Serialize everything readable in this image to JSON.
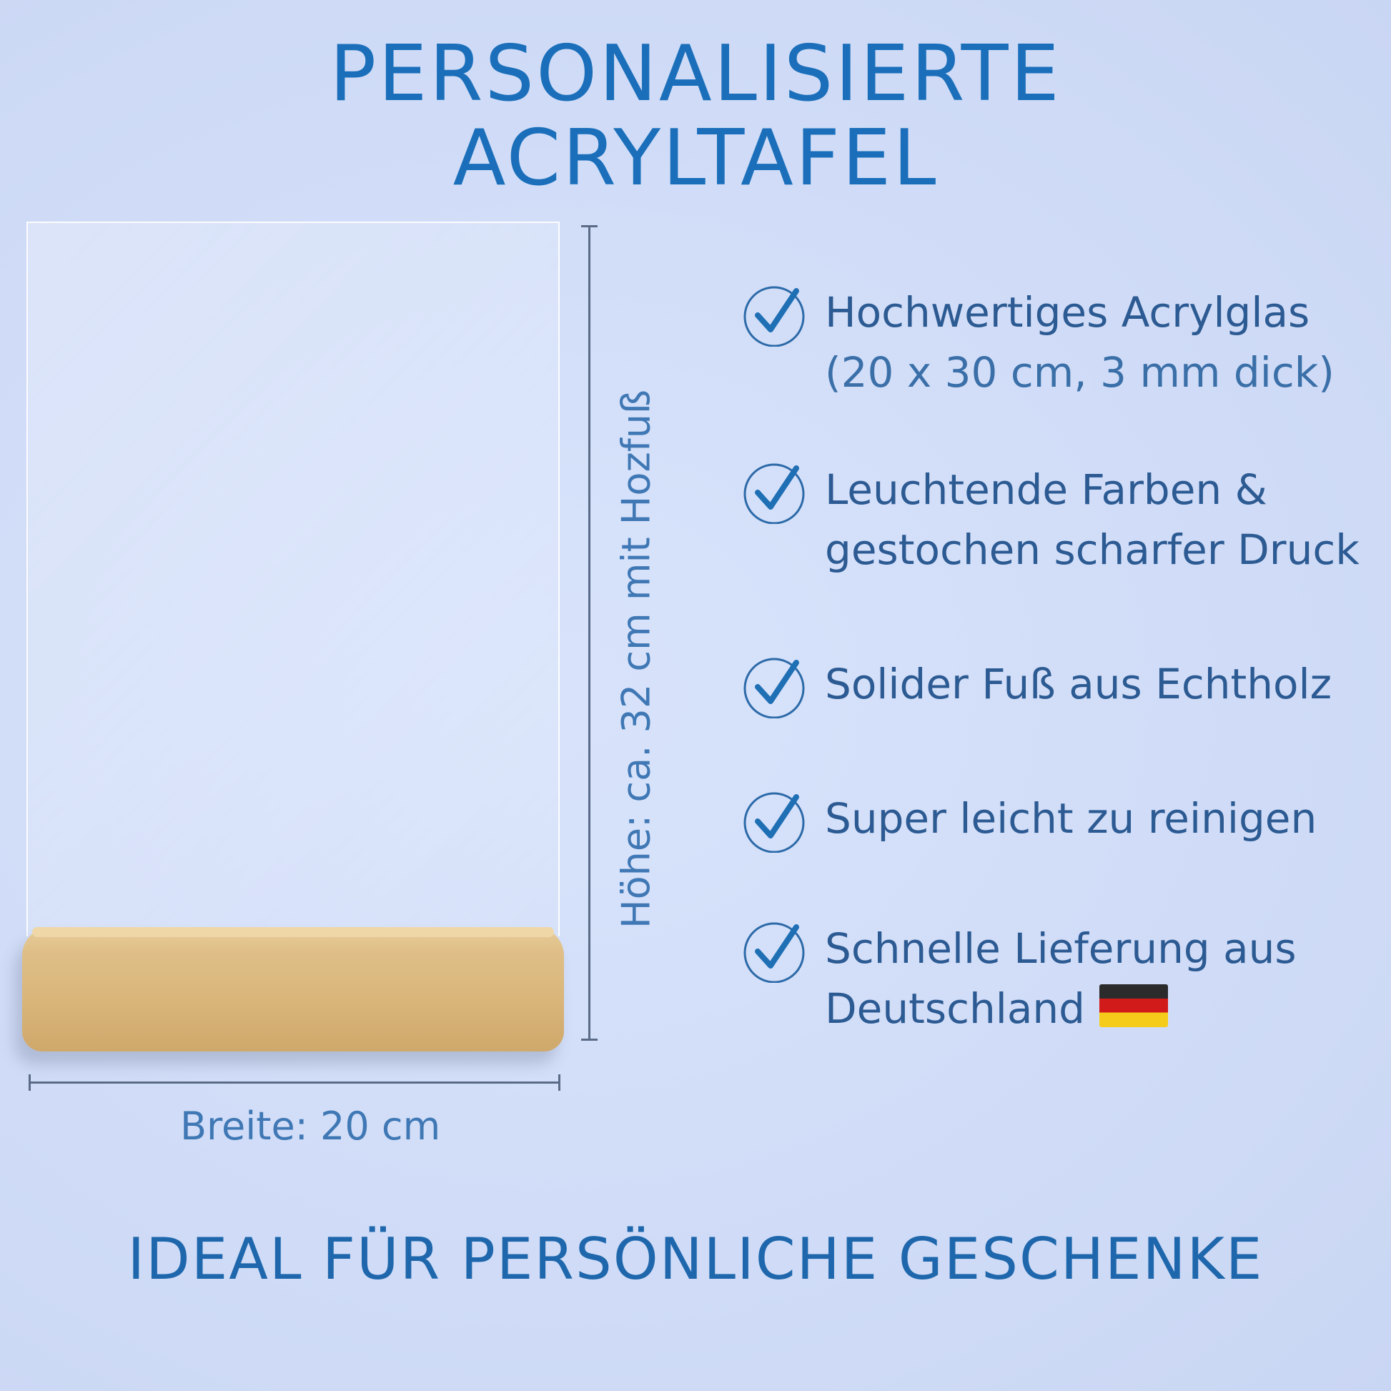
{
  "title": {
    "line1": "PERSONALISIERTE",
    "line2": "ACRYLTAFEL"
  },
  "dimensions": {
    "height_label": "Höhe: ca. 32 cm mit Hozfuß",
    "width_label": "Breite: 20 cm"
  },
  "features": [
    {
      "line1": "Hochwertiges Acrylglas",
      "line2": "(20 x 30 cm, 3 mm dick)"
    },
    {
      "line1": "Leuchtende Farben &",
      "line2": "gestochen scharfer Druck"
    },
    {
      "line1": "Solider Fuß aus Echtholz",
      "line2": ""
    },
    {
      "line1": "Super leicht zu reinigen",
      "line2": ""
    },
    {
      "line1": "Schnelle Lieferung aus",
      "line2": "Deutschland"
    }
  ],
  "tagline": "IDEAL FÜR PERSÖNLICHE GESCHENKE",
  "icons": {
    "feature": "check-circle-icon",
    "flag": "germany-flag-icon"
  },
  "colors": {
    "title": "#1b6fba",
    "text": "#2c5a92",
    "background": "#d0dcf7"
  }
}
